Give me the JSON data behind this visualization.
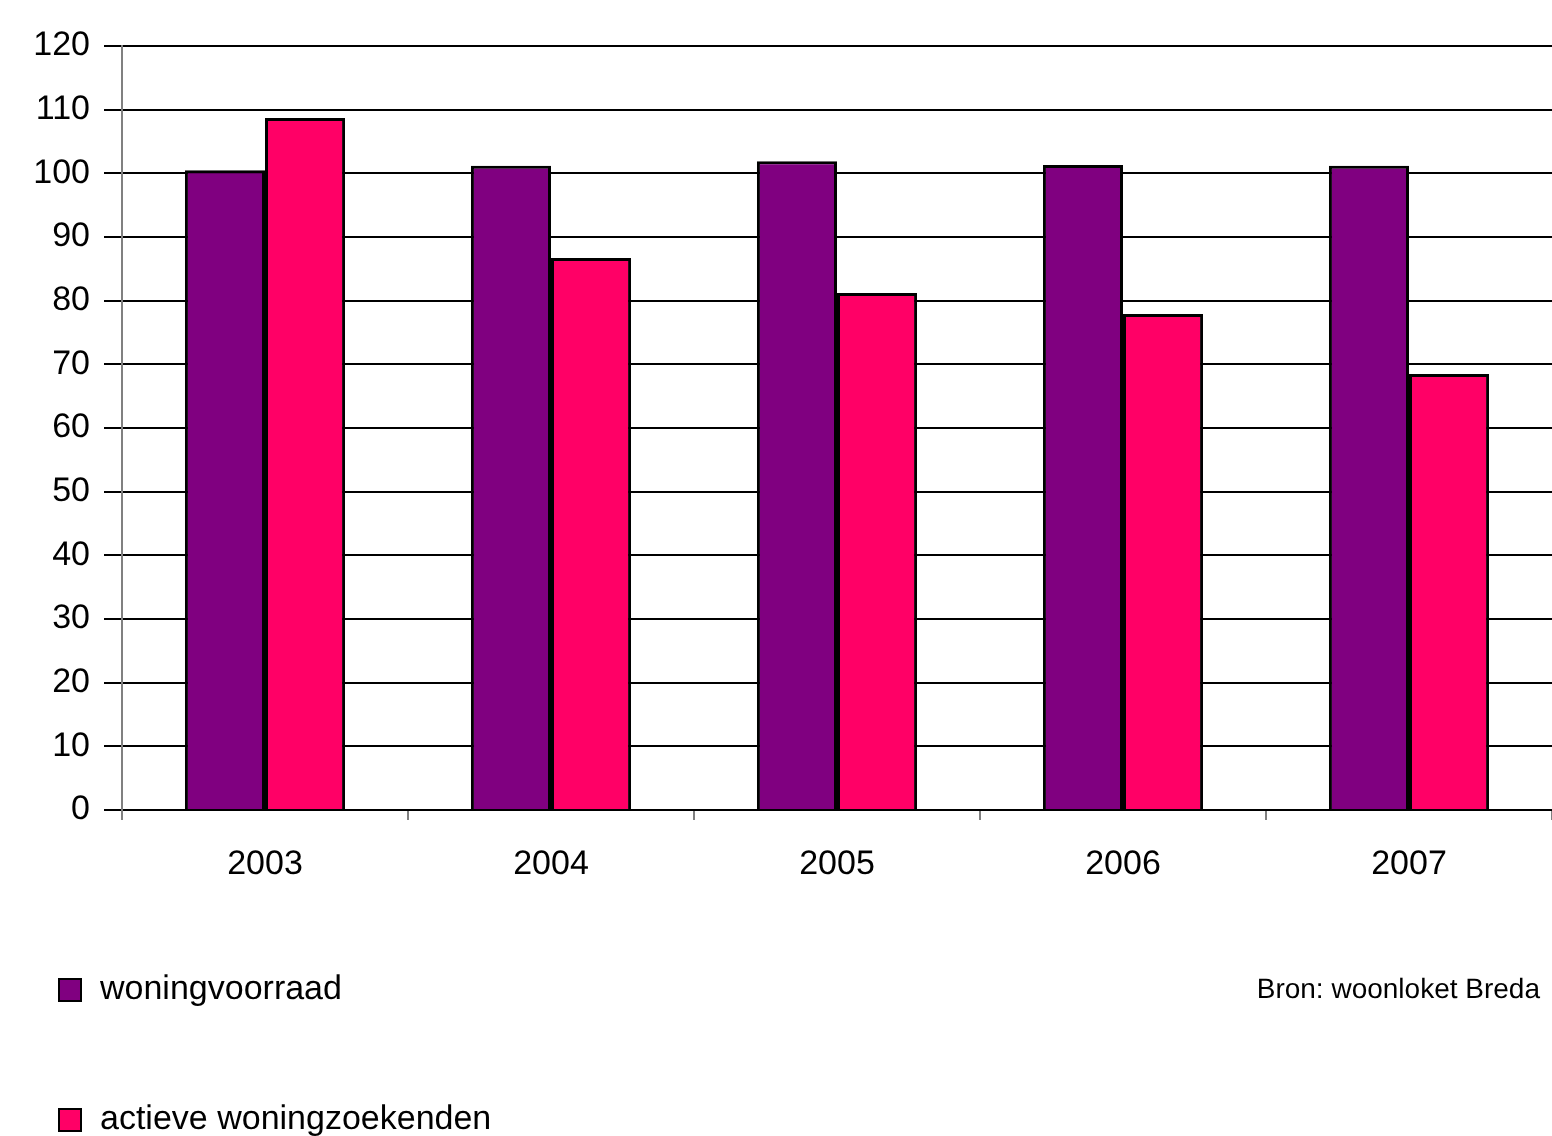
{
  "chart_data": {
    "type": "bar",
    "categories": [
      "2003",
      "2004",
      "2005",
      "2006",
      "2007"
    ],
    "series": [
      {
        "name": "woningvoorraad",
        "color": "#800080",
        "values": [
          100.5,
          101.2,
          101.9,
          101.3,
          101.2
        ]
      },
      {
        "name": "actieve woningzoekenden",
        "color": "#ff0066",
        "values": [
          108.7,
          86.7,
          81.2,
          77.9,
          68.5
        ]
      }
    ],
    "ylim": [
      0,
      120
    ],
    "yticks": [
      0,
      10,
      20,
      30,
      40,
      50,
      60,
      70,
      80,
      90,
      100,
      110,
      120
    ],
    "grid": "y",
    "legend": "bottom left",
    "annotations": [
      "Bron: woonloket Breda"
    ]
  }
}
